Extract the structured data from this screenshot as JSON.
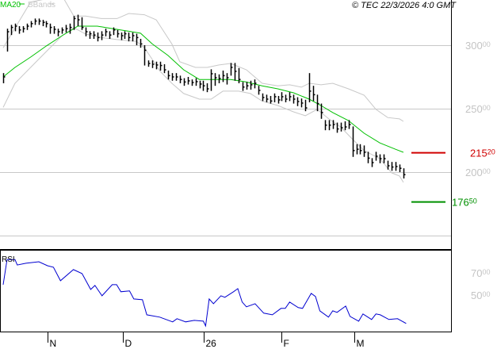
{
  "header": {
    "legend": [
      {
        "label": "MA20",
        "color": "#00c000"
      },
      {
        "label": "BBands",
        "color": "#c8c8c8"
      }
    ],
    "copyright": "© TEC 22/3/2026 4:0 GMT"
  },
  "chart_data": [
    {
      "type": "ohlc",
      "panel": "price",
      "ylim": [
        138.75,
        335.6
      ],
      "grid": true,
      "gridlines": [
        300,
        250,
        200,
        150
      ],
      "y_tick_labels": [
        {
          "value": 300,
          "major": "300",
          "minor": "00"
        },
        {
          "value": 250,
          "major": "250",
          "minor": "00"
        },
        {
          "value": 200,
          "major": "200",
          "minor": "00"
        }
      ],
      "bar_fields": [
        "high",
        "low",
        "close"
      ],
      "bars": [
        [
          278,
          270,
          275
        ],
        [
          313,
          295,
          310.6
        ],
        [
          316,
          308,
          314
        ],
        [
          317,
          311,
          315
        ],
        [
          315,
          309,
          312
        ],
        [
          315,
          310,
          313
        ],
        [
          317,
          312,
          315
        ],
        [
          319,
          314,
          317
        ],
        [
          321,
          316,
          319
        ],
        [
          321,
          316,
          319
        ],
        [
          320,
          315,
          318
        ],
        [
          319,
          314,
          317
        ],
        [
          317,
          309,
          314
        ],
        [
          315,
          309,
          312.5
        ],
        [
          313,
          307,
          310.6
        ],
        [
          314,
          309,
          312
        ],
        [
          316,
          310,
          313
        ],
        [
          317,
          309,
          314
        ],
        [
          323,
          312,
          321
        ],
        [
          324,
          315,
          320
        ],
        [
          322,
          312,
          314
        ],
        [
          314,
          307,
          310.6
        ],
        [
          311,
          305,
          309
        ],
        [
          311,
          305,
          308
        ],
        [
          310,
          303,
          306
        ],
        [
          311,
          304,
          308
        ],
        [
          313,
          307,
          310.6
        ],
        [
          311,
          305,
          308
        ],
        [
          314,
          308,
          312
        ],
        [
          312,
          306,
          309
        ],
        [
          310,
          304,
          307.5
        ],
        [
          311,
          305,
          309
        ],
        [
          310,
          303,
          306
        ],
        [
          310,
          303,
          307.5
        ],
        [
          309,
          300,
          306
        ],
        [
          305,
          298,
          301
        ],
        [
          300,
          284,
          296
        ],
        [
          288,
          283,
          285.6
        ],
        [
          288,
          282,
          285
        ],
        [
          287,
          281,
          284.4
        ],
        [
          287,
          280,
          284
        ],
        [
          285,
          278,
          280.6
        ],
        [
          280,
          273,
          276
        ],
        [
          278,
          272,
          275
        ],
        [
          278,
          272,
          275
        ],
        [
          276,
          270,
          273
        ],
        [
          274,
          268,
          271
        ],
        [
          275,
          269,
          271.9
        ],
        [
          273,
          268,
          270.6
        ],
        [
          274,
          268,
          271.3
        ],
        [
          272,
          266,
          269.4
        ],
        [
          272,
          264,
          268
        ],
        [
          270,
          263,
          265.6
        ],
        [
          281,
          264,
          277.5
        ],
        [
          278,
          268,
          274.4
        ],
        [
          277,
          270,
          273.8
        ],
        [
          280,
          271,
          276
        ],
        [
          278,
          269,
          274.4
        ],
        [
          286,
          276,
          282.5
        ],
        [
          286,
          272,
          279.4
        ],
        [
          282,
          270,
          273
        ],
        [
          271,
          264,
          267
        ],
        [
          271,
          265,
          268
        ],
        [
          272,
          265,
          268.8
        ],
        [
          273,
          266,
          270
        ],
        [
          268,
          261,
          264.4
        ],
        [
          262,
          256,
          258.8
        ],
        [
          261,
          255,
          257.5
        ],
        [
          260,
          254,
          256
        ],
        [
          262,
          255,
          259.4
        ],
        [
          260,
          254,
          256.9
        ],
        [
          263,
          256,
          259.4
        ],
        [
          261,
          255,
          257.5
        ],
        [
          263,
          256,
          259.4
        ],
        [
          261,
          254,
          257.5
        ],
        [
          259,
          252,
          255.6
        ],
        [
          258,
          251,
          254.4
        ],
        [
          257,
          248,
          250.6
        ],
        [
          278,
          255,
          263.8
        ],
        [
          268,
          256,
          261
        ],
        [
          261,
          248,
          254
        ],
        [
          254,
          242,
          247
        ],
        [
          241,
          233,
          237
        ],
        [
          241,
          233,
          237
        ],
        [
          241,
          234,
          237.5
        ],
        [
          239,
          231,
          234
        ],
        [
          239,
          232,
          235
        ],
        [
          240,
          233,
          235.6
        ],
        [
          241,
          234,
          237.5
        ],
        [
          236,
          212,
          217
        ],
        [
          222,
          214,
          218
        ],
        [
          222,
          214,
          217
        ],
        [
          221,
          212,
          215.6
        ],
        [
          216,
          207,
          211
        ],
        [
          211,
          204,
          207.5
        ],
        [
          216,
          209,
          212.5
        ],
        [
          214,
          207,
          210.6
        ],
        [
          214,
          207,
          210.6
        ],
        [
          209,
          202,
          205
        ],
        [
          208,
          201,
          204
        ],
        [
          208,
          201,
          204.4
        ],
        [
          206,
          200,
          203
        ],
        [
          203,
          195,
          198
        ]
      ],
      "ma20": {
        "name": "MA20",
        "points": [
          [
            0,
            275
          ],
          [
            3,
            282.5
          ],
          [
            7,
            290.6
          ],
          [
            11,
            299.4
          ],
          [
            15,
            307.5
          ],
          [
            18,
            313
          ],
          [
            19,
            315
          ],
          [
            24,
            315
          ],
          [
            28,
            313
          ],
          [
            32,
            311
          ],
          [
            35,
            309.4
          ],
          [
            38,
            301
          ],
          [
            42,
            291.9
          ],
          [
            46,
            280.6
          ],
          [
            50,
            273
          ],
          [
            52,
            273
          ],
          [
            55,
            273
          ],
          [
            58,
            273
          ],
          [
            62,
            271
          ],
          [
            66,
            268
          ],
          [
            70,
            265.6
          ],
          [
            74,
            262.5
          ],
          [
            78,
            257.5
          ],
          [
            81,
            252.5
          ],
          [
            84,
            246.9
          ],
          [
            88,
            240.6
          ],
          [
            92,
            230.6
          ],
          [
            96,
            223
          ],
          [
            100,
            218
          ],
          [
            102,
            215.6
          ]
        ]
      },
      "bbands": {
        "name": "BBands",
        "upper": [
          [
            0,
            298
          ],
          [
            7,
            334
          ],
          [
            15,
            339
          ],
          [
            18,
            323
          ],
          [
            21,
            323
          ],
          [
            25,
            321
          ],
          [
            29,
            321
          ],
          [
            32,
            325
          ],
          [
            36,
            324
          ],
          [
            39,
            320
          ],
          [
            43,
            301
          ],
          [
            45,
            287
          ],
          [
            49,
            282.5
          ],
          [
            52,
            282.5
          ],
          [
            55,
            284.4
          ],
          [
            58,
            285.6
          ],
          [
            62,
            280.6
          ],
          [
            66,
            270
          ],
          [
            70,
            268
          ],
          [
            73,
            268.8
          ],
          [
            76,
            266.9
          ],
          [
            78,
            270
          ],
          [
            81,
            268.8
          ],
          [
            84,
            270
          ],
          [
            88,
            265.6
          ],
          [
            92,
            260.6
          ],
          [
            95,
            249.4
          ],
          [
            98,
            243
          ],
          [
            101,
            241.9
          ],
          [
            102,
            240
          ]
        ],
        "lower": [
          [
            0,
            251
          ],
          [
            3,
            270
          ],
          [
            9,
            288.8
          ],
          [
            15,
            307.5
          ],
          [
            18,
            313.8
          ],
          [
            21,
            308.8
          ],
          [
            25,
            306
          ],
          [
            29,
            304.4
          ],
          [
            34,
            303
          ],
          [
            36,
            298
          ],
          [
            38,
            288.8
          ],
          [
            40,
            279.4
          ],
          [
            43,
            270
          ],
          [
            46,
            261.9
          ],
          [
            50,
            257.5
          ],
          [
            53,
            257.5
          ],
          [
            56,
            263.8
          ],
          [
            60,
            263.8
          ],
          [
            63,
            261.9
          ],
          [
            66,
            256
          ],
          [
            70,
            252.5
          ],
          [
            74,
            247.5
          ],
          [
            77,
            244.4
          ],
          [
            80,
            249.4
          ],
          [
            83,
            241.9
          ],
          [
            86,
            235.6
          ],
          [
            89,
            226
          ],
          [
            92,
            216.9
          ],
          [
            96,
            210.6
          ],
          [
            99,
            199.4
          ],
          [
            101,
            196.9
          ],
          [
            102,
            192
          ]
        ]
      },
      "levels": [
        {
          "value": 215.2,
          "major": "215",
          "minor": "20",
          "color": "#d00000"
        },
        {
          "value": 176.5,
          "major": "176",
          "minor": "50",
          "color": "#009000"
        }
      ]
    },
    {
      "type": "line",
      "panel": "rsi",
      "title": "RSI",
      "ylim": [
        17,
        90.7
      ],
      "color": "#0000d0",
      "y_tick_labels": [
        {
          "value": 70,
          "major": "70",
          "minor": "00"
        },
        {
          "value": 50,
          "major": "50",
          "minor": "00"
        }
      ],
      "points": [
        [
          0,
          59.3
        ],
        [
          1,
          82
        ],
        [
          3,
          82
        ],
        [
          3.6,
          77
        ],
        [
          5.8,
          78.6
        ],
        [
          9.1,
          80
        ],
        [
          11.3,
          76.4
        ],
        [
          12.8,
          75
        ],
        [
          14.6,
          62.9
        ],
        [
          17.9,
          72.9
        ],
        [
          20.1,
          69.3
        ],
        [
          22.3,
          55
        ],
        [
          23.4,
          58.6
        ],
        [
          25.2,
          49.3
        ],
        [
          27.8,
          59.3
        ],
        [
          28.9,
          59.3
        ],
        [
          30,
          52.9
        ],
        [
          32.2,
          53.6
        ],
        [
          33.3,
          46.4
        ],
        [
          35.5,
          45.7
        ],
        [
          36.6,
          32.1
        ],
        [
          39.9,
          30
        ],
        [
          43.2,
          25.7
        ],
        [
          44.3,
          28.6
        ],
        [
          46.5,
          25.7
        ],
        [
          48.7,
          27.1
        ],
        [
          51,
          26.4
        ],
        [
          51.6,
          22.1
        ],
        [
          52.5,
          46.4
        ],
        [
          53.6,
          42.1
        ],
        [
          55.5,
          49.3
        ],
        [
          56.5,
          47.9
        ],
        [
          58.7,
          52.9
        ],
        [
          59.8,
          55.7
        ],
        [
          60.9,
          43.6
        ],
        [
          62,
          39.3
        ],
        [
          64.2,
          42.1
        ],
        [
          66.4,
          33.6
        ],
        [
          68.6,
          32.1
        ],
        [
          70.8,
          37.9
        ],
        [
          71.9,
          37.9
        ],
        [
          73,
          43.6
        ],
        [
          75.2,
          38.6
        ],
        [
          76.3,
          37.9
        ],
        [
          78.5,
          51.4
        ],
        [
          79.6,
          48.6
        ],
        [
          80.7,
          35.7
        ],
        [
          82.9,
          30
        ],
        [
          84,
          35.7
        ],
        [
          85.1,
          34.3
        ],
        [
          87.3,
          40
        ],
        [
          88.4,
          30.7
        ],
        [
          90.6,
          26.4
        ],
        [
          91.7,
          32.9
        ],
        [
          93.9,
          27.9
        ],
        [
          95,
          32.9
        ],
        [
          96.1,
          32.1
        ],
        [
          98.3,
          27.9
        ],
        [
          100.5,
          28.6
        ],
        [
          102.7,
          24.3
        ]
      ]
    }
  ],
  "x_axis": {
    "labels": [
      {
        "label": "N",
        "bar": 11.3
      },
      {
        "label": "D",
        "bar": 30.5
      },
      {
        "label": "26",
        "bar": 51.1
      },
      {
        "label": "F",
        "bar": 70.9
      },
      {
        "label": "M",
        "bar": 89.5
      }
    ]
  }
}
